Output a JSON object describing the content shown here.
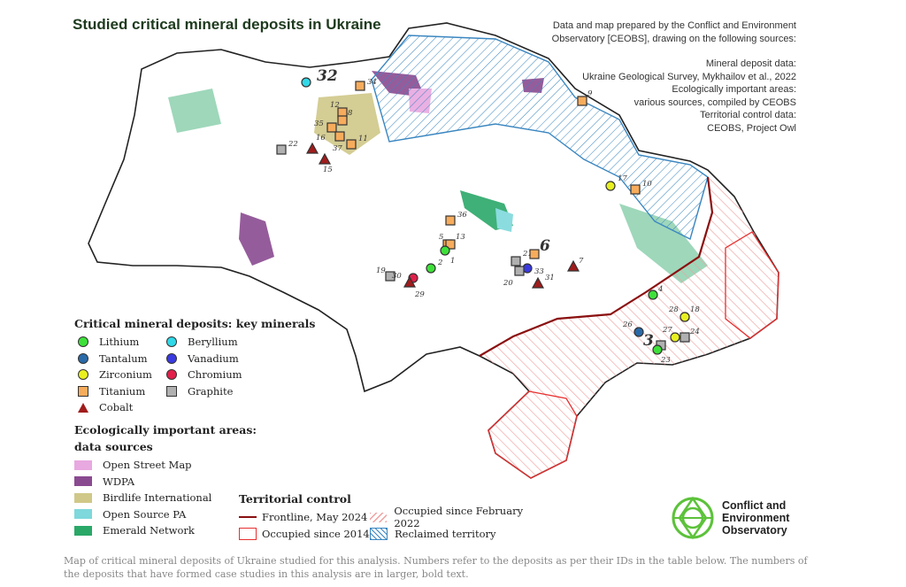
{
  "title": "Studied critical mineral deposits in Ukraine",
  "credits": [
    "Data and map prepared by the Conflict and Environment",
    "Observatory [CEOBS], drawing on the following sources:",
    "",
    "Mineral deposit data:",
    "Ukraine Geological Survey, Mykhailov et al., 2022",
    "Ecologically important areas:",
    "various sources, compiled by CEOBS",
    "Territorial control data:",
    "CEOBS, Project Owl"
  ],
  "colors": {
    "Lithium": "#3ee03a",
    "Tantalum": "#2a6aa8",
    "Zirconium": "#e8f020",
    "Titanium": "#f7ac5c",
    "Cobalt": "#a01c1c",
    "Beryllium": "#30d8e8",
    "Vanadium": "#3a3ae0",
    "Chromium": "#e0204a",
    "Graphite": "#b0b0b0",
    "osm": "#e8a8e0",
    "wdpa": "#8a4a90",
    "birdlife": "#d0c888",
    "ospa": "#7ed8dc",
    "emerald": "#2aa868",
    "frontline": "#8a1010",
    "occupied2014": "#e83030",
    "occupied2022": "#f0a0a0",
    "reclaimed": "#3a86c0"
  },
  "legend_minerals": {
    "heading": "Critical mineral deposits: key minerals",
    "items": [
      {
        "label": "Lithium",
        "shape": "circle"
      },
      {
        "label": "Beryllium",
        "shape": "circle"
      },
      {
        "label": "Tantalum",
        "shape": "circle"
      },
      {
        "label": "Vanadium",
        "shape": "circle"
      },
      {
        "label": "Zirconium",
        "shape": "circle"
      },
      {
        "label": "Chromium",
        "shape": "circle"
      },
      {
        "label": "Titanium",
        "shape": "square"
      },
      {
        "label": "Graphite",
        "shape": "square"
      },
      {
        "label": "Cobalt",
        "shape": "triangle"
      }
    ]
  },
  "legend_eco": {
    "heading1": "Ecologically important areas:",
    "heading2": "data sources",
    "items": [
      "Open Street Map",
      "WDPA",
      "Birdlife International",
      "Open Source PA",
      "Emerald Network"
    ]
  },
  "legend_territory": {
    "heading": "Territorial control",
    "items": [
      "Frontline, May 2024",
      "Occupied since February 2022",
      "Occupied since 2014",
      "Reclaimed territory"
    ]
  },
  "deposits": [
    {
      "id": "32",
      "mineral": "Beryllium",
      "case_study": true
    },
    {
      "id": "34",
      "mineral": "Titanium"
    },
    {
      "id": "12",
      "mineral": "Titanium"
    },
    {
      "id": "8",
      "mineral": "Titanium"
    },
    {
      "id": "35",
      "mineral": "Titanium"
    },
    {
      "id": "37",
      "mineral": "Titanium"
    },
    {
      "id": "11",
      "mineral": "Titanium"
    },
    {
      "id": "22",
      "mineral": "Graphite"
    },
    {
      "id": "16",
      "mineral": "Cobalt"
    },
    {
      "id": "15",
      "mineral": "Cobalt"
    },
    {
      "id": "9",
      "mineral": "Titanium"
    },
    {
      "id": "17",
      "mineral": "Zirconium"
    },
    {
      "id": "10",
      "mineral": "Titanium"
    },
    {
      "id": "36",
      "mineral": "Titanium"
    },
    {
      "id": "5",
      "mineral": "Titanium"
    },
    {
      "id": "13",
      "mineral": "Titanium"
    },
    {
      "id": "1",
      "mineral": "Lithium"
    },
    {
      "id": "2",
      "mineral": "Lithium"
    },
    {
      "id": "19",
      "mineral": "Graphite"
    },
    {
      "id": "30",
      "mineral": "Chromium"
    },
    {
      "id": "29",
      "mineral": "Cobalt"
    },
    {
      "id": "21",
      "mineral": "Graphite"
    },
    {
      "id": "6",
      "mineral": "Titanium",
      "case_study": true
    },
    {
      "id": "33",
      "mineral": "Vanadium"
    },
    {
      "id": "20",
      "mineral": "Graphite"
    },
    {
      "id": "31",
      "mineral": "Cobalt"
    },
    {
      "id": "7",
      "mineral": "Cobalt"
    },
    {
      "id": "4",
      "mineral": "Lithium"
    },
    {
      "id": "28",
      "mineral": "Zirconium"
    },
    {
      "id": "18",
      "mineral": "Zirconium"
    },
    {
      "id": "26",
      "mineral": "Tantalum"
    },
    {
      "id": "27",
      "mineral": "Zirconium"
    },
    {
      "id": "24",
      "mineral": "Graphite"
    },
    {
      "id": "3",
      "mineral": "Graphite",
      "case_study": true
    },
    {
      "id": "23",
      "mineral": "Lithium"
    }
  ],
  "logo": {
    "lines": [
      "Conflict and",
      "Environment",
      "Observatory"
    ]
  },
  "caption": "Map of critical mineral deposits of Ukraine studied for this analysis. Numbers refer to the deposits as per their IDs in the table below. The numbers of the deposits that have formed case studies in this analysis are in larger, bold text."
}
